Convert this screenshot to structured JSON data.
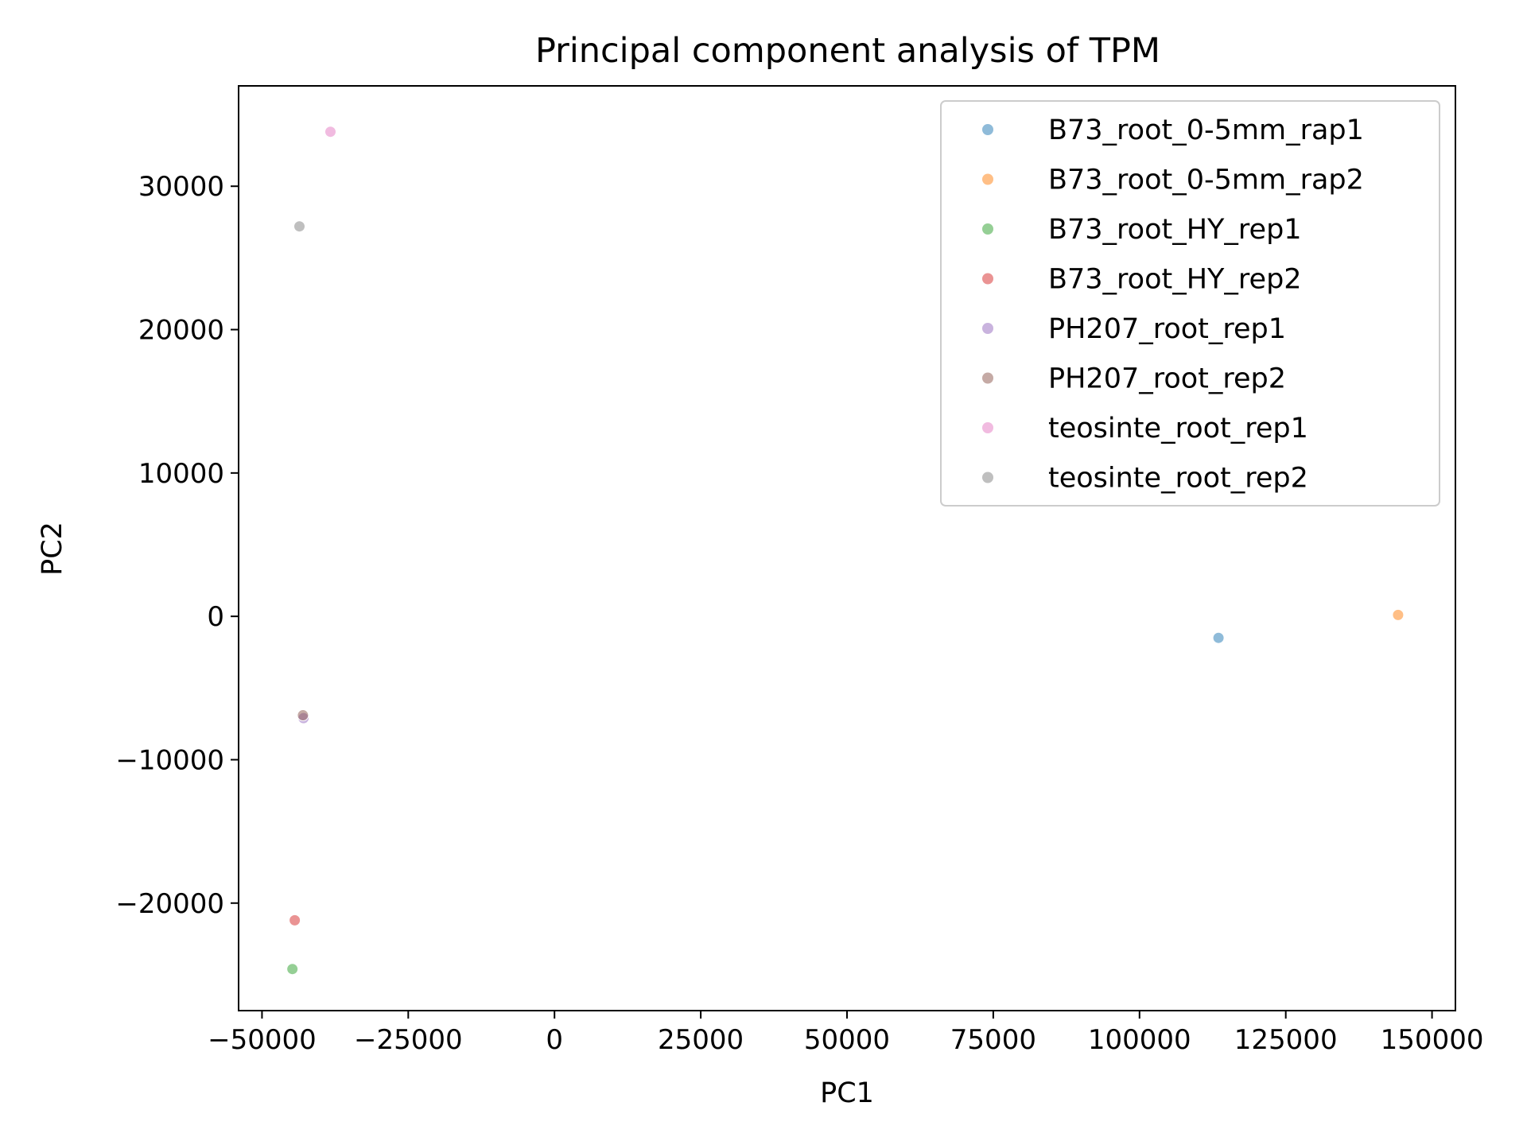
{
  "chart_data": {
    "type": "scatter",
    "title": "Principal component analysis of TPM",
    "xlabel": "PC1",
    "ylabel": "PC2",
    "xlim": [
      -54000,
      154000
    ],
    "ylim": [
      -27500,
      37000
    ],
    "xticks": [
      -50000,
      -25000,
      0,
      25000,
      50000,
      75000,
      100000,
      125000,
      150000
    ],
    "xtick_labels": [
      "−50000",
      "−25000",
      "0",
      "25000",
      "50000",
      "75000",
      "100000",
      "125000",
      "150000"
    ],
    "yticks": [
      -20000,
      -10000,
      0,
      10000,
      20000,
      30000
    ],
    "ytick_labels": [
      "−20000",
      "−10000",
      "0",
      "10000",
      "20000",
      "30000"
    ],
    "grid": false,
    "legend_position": "top-right",
    "series": [
      {
        "name": "B73_root_0-5mm_rap1",
        "color": "#1f77b4",
        "points": [
          [
            113500,
            -1500
          ]
        ]
      },
      {
        "name": "B73_root_0-5mm_rap2",
        "color": "#ff7f0e",
        "points": [
          [
            144200,
            100
          ]
        ]
      },
      {
        "name": "B73_root_HY_rep1",
        "color": "#2ca02c",
        "points": [
          [
            -44800,
            -24600
          ]
        ]
      },
      {
        "name": "B73_root_HY_rep2",
        "color": "#d62728",
        "points": [
          [
            -44400,
            -21200
          ]
        ]
      },
      {
        "name": "PH207_root_rep1",
        "color": "#9467bd",
        "points": [
          [
            -42900,
            -7100
          ]
        ]
      },
      {
        "name": "PH207_root_rep2",
        "color": "#8c564b",
        "points": [
          [
            -43000,
            -6900
          ]
        ]
      },
      {
        "name": "teosinte_root_rep1",
        "color": "#e377c2",
        "points": [
          [
            -38300,
            33800
          ]
        ]
      },
      {
        "name": "teosinte_root_rep2",
        "color": "#7f7f7f",
        "points": [
          [
            -43600,
            27200
          ]
        ]
      }
    ]
  }
}
